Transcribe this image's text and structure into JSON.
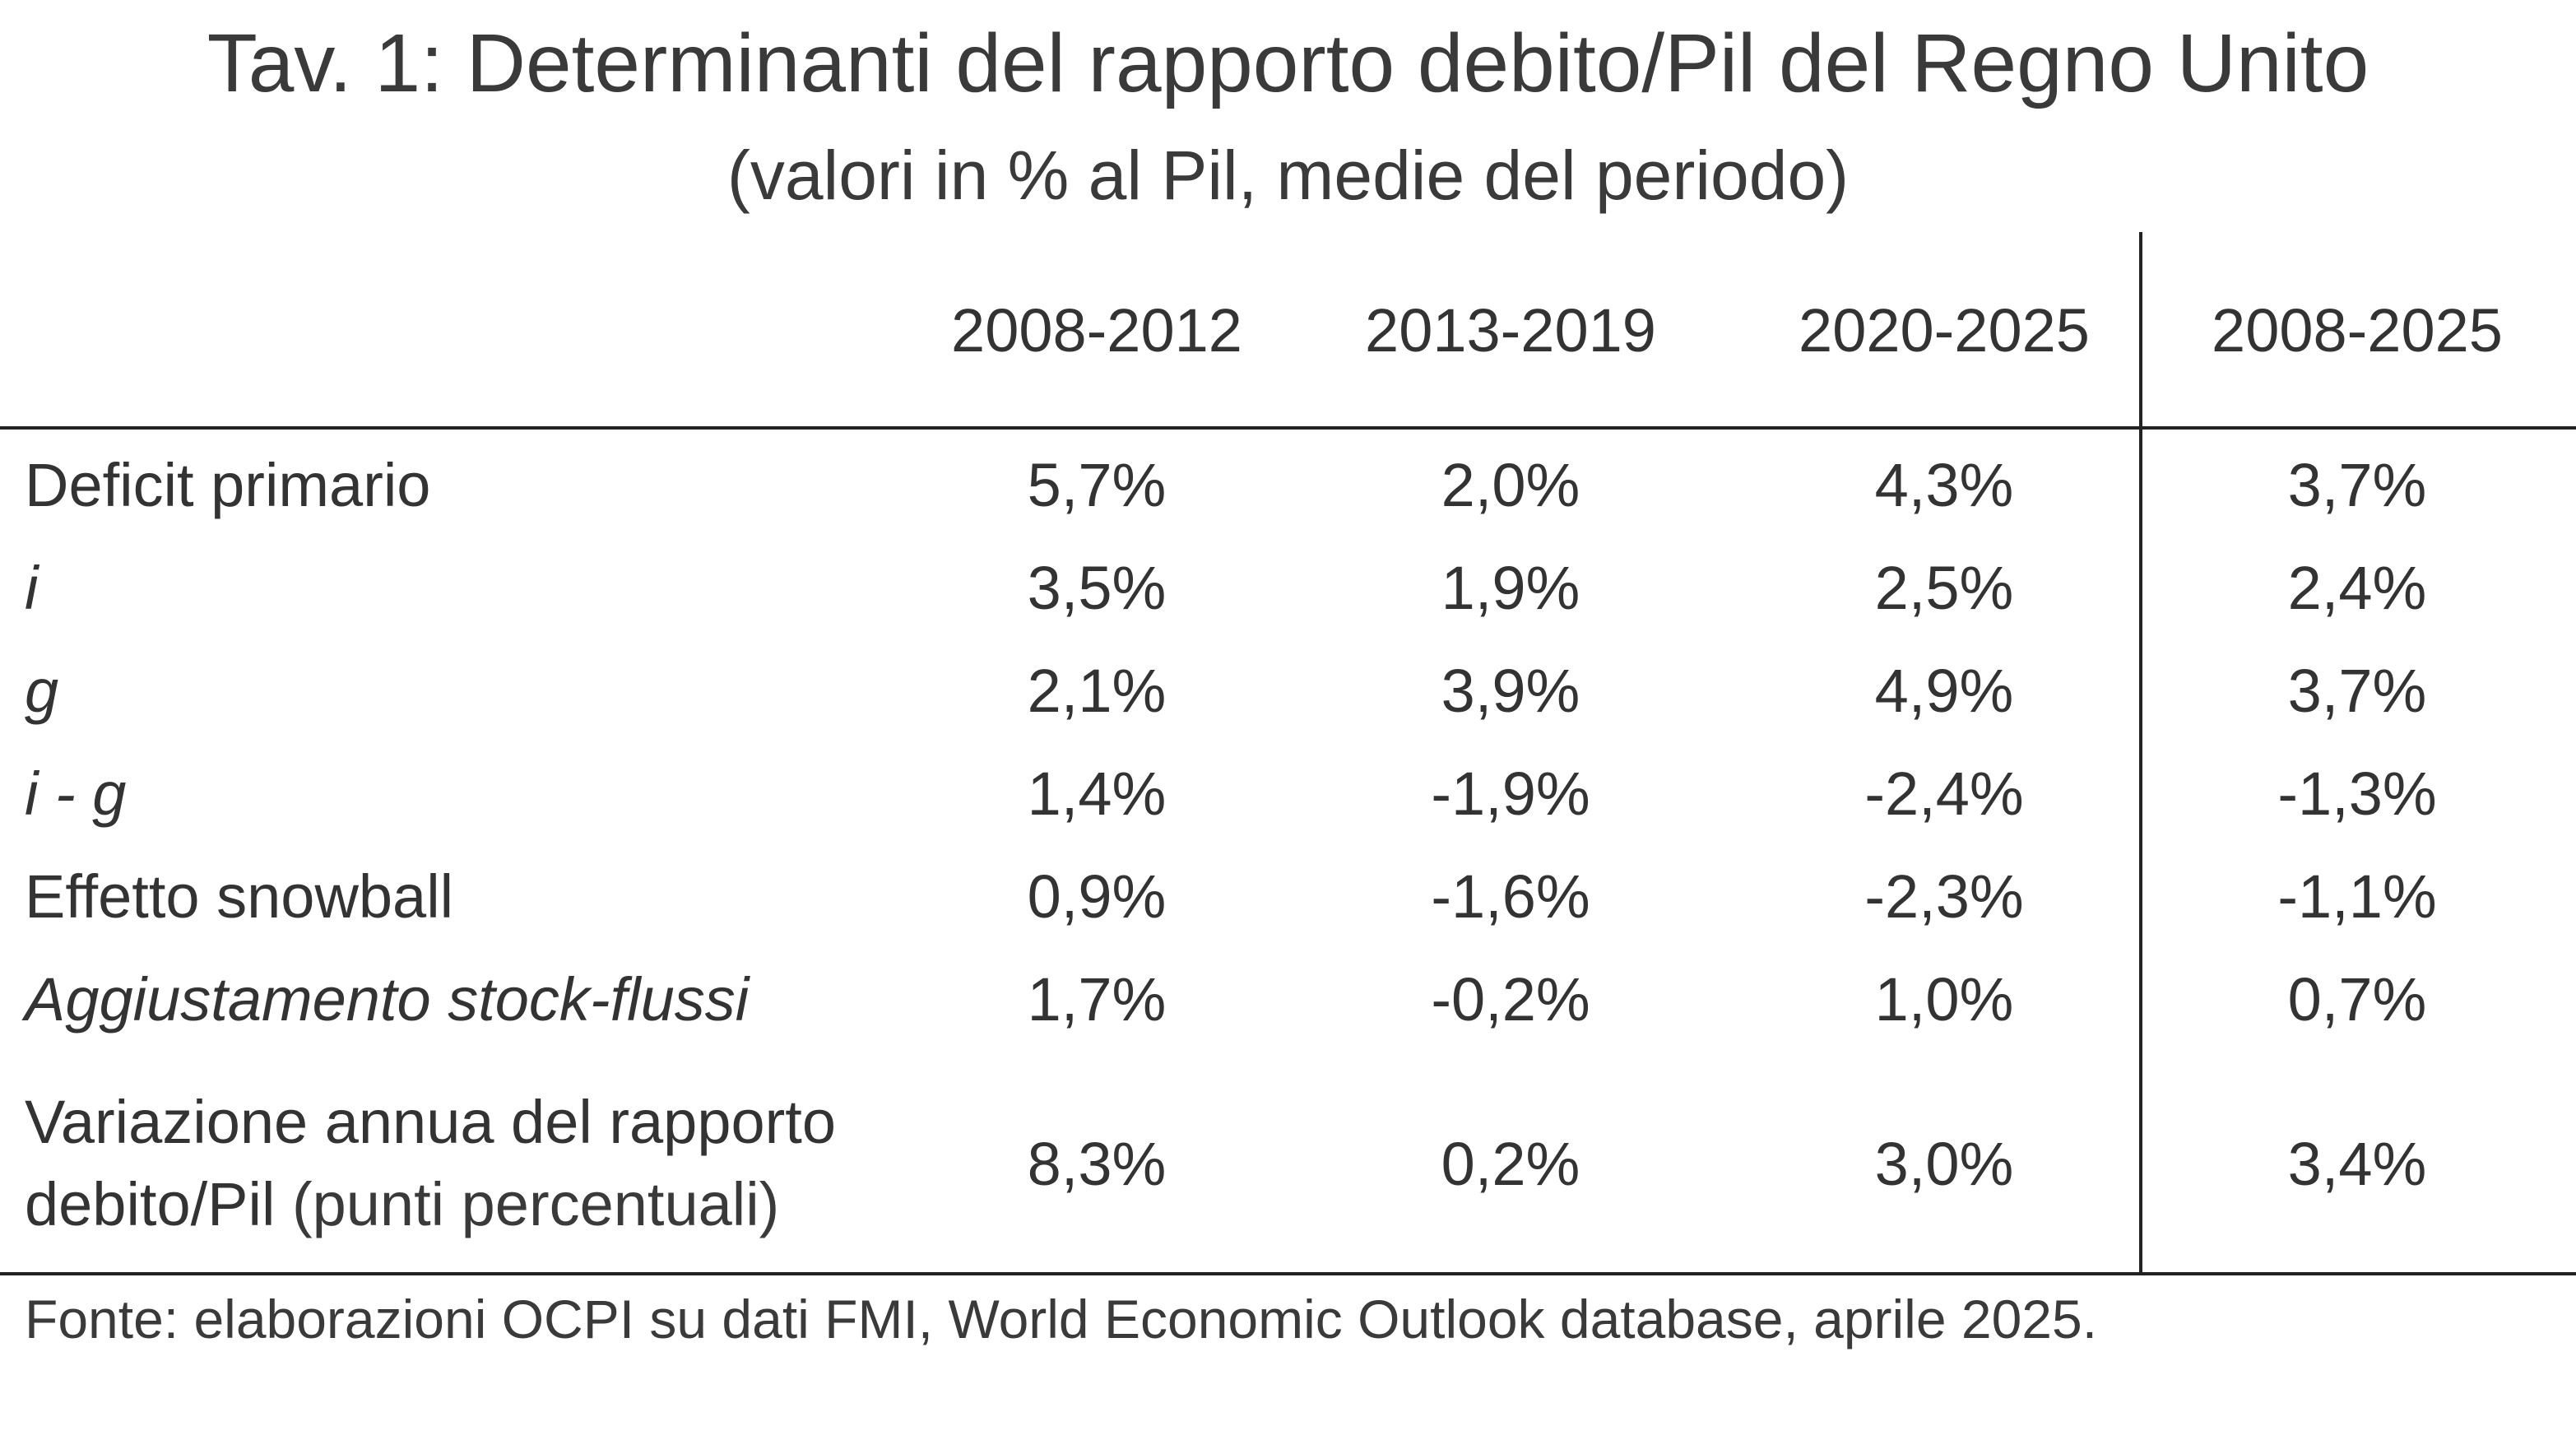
{
  "title": "Tav. 1: Determinanti del rapporto debito/Pil del Regno Unito",
  "subtitle": "(valori in % al Pil, medie del periodo)",
  "columns": [
    "2008-2012",
    "2013-2019",
    "2020-2025",
    "2008-2025"
  ],
  "rows": [
    {
      "label": "Deficit primario",
      "values": [
        "5,7%",
        "2,0%",
        "4,3%",
        "3,7%"
      ]
    },
    {
      "label": "i",
      "values": [
        "3,5%",
        "1,9%",
        "2,5%",
        "2,4%"
      ]
    },
    {
      "label": "g",
      "values": [
        "2,1%",
        "3,9%",
        "4,9%",
        "3,7%"
      ]
    },
    {
      "label": "i - g",
      "values": [
        "1,4%",
        "-1,9%",
        "-2,4%",
        "-1,3%"
      ]
    },
    {
      "label": "Effetto snowball",
      "values": [
        "0,9%",
        "-1,6%",
        "-2,3%",
        "-1,1%"
      ]
    },
    {
      "label": "Aggiustamento stock-flussi",
      "values": [
        "1,7%",
        "-0,2%",
        "1,0%",
        "0,7%"
      ]
    },
    {
      "label_line1": "Variazione annua del rapporto",
      "label_line2_main": "debito/Pil",
      "label_line2_note": " (punti percentuali)",
      "values": [
        "8,3%",
        "0,2%",
        "3,0%",
        "3,4%"
      ]
    }
  ],
  "source": "Fonte: elaborazioni OCPI su dati FMI, World Economic Outlook database, aprile 2025."
}
